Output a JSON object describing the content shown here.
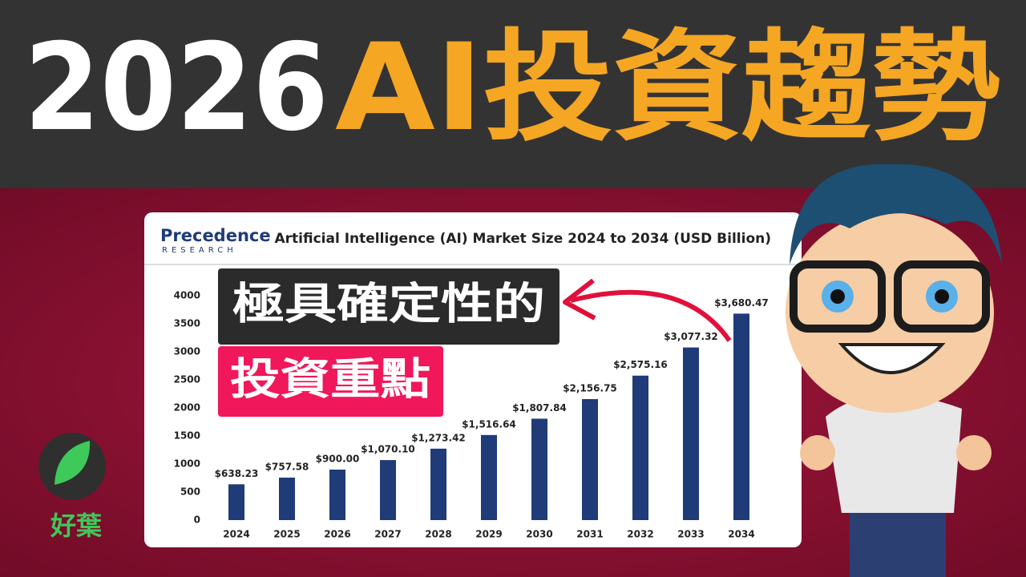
{
  "header": {
    "year": "2026",
    "topic": "AI投資趨勢"
  },
  "logo": {
    "name": "Precedence",
    "tagline": "RESEARCH"
  },
  "callouts": [
    "極具確定性的",
    "投資重點"
  ],
  "brand": "好葉",
  "chart_data": {
    "type": "bar",
    "title": "Artificial Intelligence (AI) Market Size 2024 to 2034 (USD Billion)",
    "categories": [
      "2024",
      "2025",
      "2026",
      "2027",
      "2028",
      "2029",
      "2030",
      "2031",
      "2032",
      "2033",
      "2034"
    ],
    "values": [
      638.23,
      757.58,
      900.0,
      1070.1,
      1273.42,
      1516.64,
      1807.84,
      2156.75,
      2575.16,
      3077.32,
      3680.47
    ],
    "value_labels": [
      "$638.23",
      "$757.58",
      "$900.00",
      "$1,070.10",
      "$1,273.42",
      "$1,516.64",
      "$1,807.84",
      "$2,156.75",
      "$2,575.16",
      "$3,077.32",
      "$3,680.47"
    ],
    "color": "#1f3b78",
    "ylim": [
      0,
      4000
    ],
    "yticks": [
      0,
      500,
      1000,
      1500,
      2000,
      2500,
      3000,
      3500,
      4000
    ],
    "grid": false
  }
}
